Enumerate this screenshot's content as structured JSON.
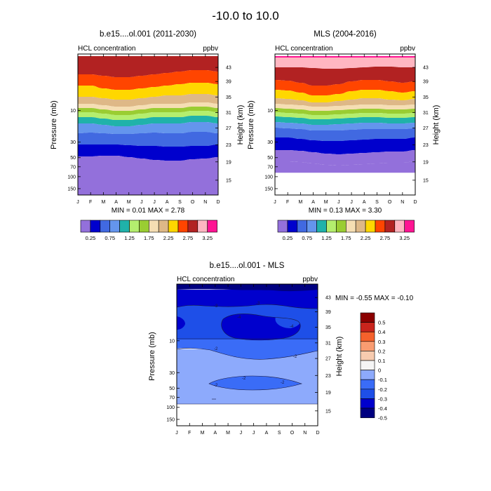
{
  "page_title": "-10.0 to  10.0",
  "colors": {
    "abs_levels": [
      "#9370DB",
      "#0000CD",
      "#4169E1",
      "#6495ED",
      "#20B2AA",
      "#B4EE6E",
      "#9ACD32",
      "#F5DEB3",
      "#DEB887",
      "#FFD700",
      "#FF4500",
      "#B22222",
      "#FFB6C1",
      "#FF1493"
    ],
    "diff_levels": [
      "#000080",
      "#0000CD",
      "#1E4FE8",
      "#3A6CF7",
      "#8DAAFC",
      "#F5F5F5",
      "#F7CBAF",
      "#F99C71",
      "#F5612C",
      "#C9241C",
      "#8B0000"
    ]
  },
  "chart_data": [
    {
      "type": "contour",
      "title": "b.e15....ol.001 (2011-2030)",
      "left_label": "HCL concentration",
      "right_label": "ppbv",
      "xlabel": "",
      "ylabel": "Pressure (mb)",
      "ylabel_right": "Height (km)",
      "months": [
        "J",
        "F",
        "M",
        "A",
        "M",
        "J",
        "J",
        "A",
        "S",
        "O",
        "N",
        "D"
      ],
      "pressure_ticks": [
        "10",
        "30",
        "50",
        "70",
        "100",
        "150"
      ],
      "height_ticks": [
        "43",
        "39",
        "35",
        "31",
        "27",
        "23",
        "19",
        "15"
      ],
      "minmax_text": "MIN =  0.01  MAX =  2.78",
      "bottom_fill": true,
      "bands": [
        {
          "level": 2.75,
          "top": [
            80,
            80,
            80,
            80,
            80,
            80,
            80,
            80,
            80,
            80,
            80,
            80
          ]
        },
        {
          "level": 2.5,
          "top": [
            106,
            106,
            108,
            110,
            110,
            108,
            106,
            104,
            102,
            100,
            100,
            102
          ]
        },
        {
          "level": 2.25,
          "top": [
            122,
            122,
            126,
            128,
            128,
            126,
            124,
            122,
            120,
            118,
            118,
            120
          ]
        },
        {
          "level": 2.0,
          "top": [
            138,
            138,
            140,
            142,
            142,
            140,
            138,
            136,
            136,
            134,
            134,
            136
          ]
        },
        {
          "level": 1.75,
          "top": [
            148,
            148,
            150,
            152,
            152,
            150,
            148,
            148,
            148,
            146,
            146,
            148
          ]
        },
        {
          "level": 1.5,
          "top": [
            154,
            154,
            156,
            158,
            158,
            156,
            154,
            154,
            154,
            152,
            152,
            154
          ]
        },
        {
          "level": 1.25,
          "top": [
            160,
            160,
            162,
            164,
            164,
            162,
            160,
            160,
            160,
            158,
            158,
            160
          ]
        },
        {
          "level": 1.0,
          "top": [
            167,
            167,
            169,
            171,
            171,
            169,
            167,
            167,
            167,
            165,
            165,
            167
          ]
        },
        {
          "level": 0.75,
          "top": [
            176,
            176,
            178,
            180,
            180,
            178,
            176,
            176,
            176,
            174,
            174,
            176
          ]
        },
        {
          "level": 0.5,
          "top": [
            190,
            189,
            190,
            191,
            191,
            190,
            189,
            190,
            190,
            188,
            188,
            190
          ]
        },
        {
          "level": 0.25,
          "top": [
            206,
            206,
            206,
            206,
            207,
            208,
            208,
            209,
            209,
            208,
            208,
            206
          ]
        },
        {
          "level": 0.0,
          "top": [
            223,
            223,
            222,
            222,
            224,
            226,
            228,
            229,
            229,
            227,
            226,
            224
          ]
        }
      ],
      "colorbar_labels": [
        "0.25",
        "0.75",
        "1.25",
        "1.75",
        "2.25",
        "2.75",
        "3.25"
      ]
    },
    {
      "type": "contour",
      "title": "MLS (2004-2016)",
      "left_label": "HCL concentration",
      "right_label": "ppbv",
      "xlabel": "",
      "ylabel": "Pressure (mb)",
      "ylabel_right": "Height (km)",
      "months": [
        "J",
        "F",
        "M",
        "A",
        "M",
        "J",
        "J",
        "A",
        "S",
        "O",
        "N",
        "D"
      ],
      "pressure_ticks": [
        "10",
        "30",
        "50",
        "70",
        "100",
        "150"
      ],
      "height_ticks": [
        "43",
        "39",
        "35",
        "31",
        "27",
        "23",
        "19",
        "15"
      ],
      "minmax_text": "MIN =  0.13  MAX =  3.30",
      "bottom_fill": false,
      "bands": [
        {
          "level": 3.25,
          "top": [
            80,
            80,
            80,
            80,
            80,
            80,
            80,
            80,
            80,
            80,
            80,
            80
          ]
        },
        {
          "level": 3.0,
          "top": [
            82,
            82,
            82,
            82,
            82,
            82,
            82,
            82,
            82,
            82,
            82,
            82
          ]
        },
        {
          "level": 2.75,
          "top": [
            96,
            96,
            96,
            97,
            98,
            98,
            97,
            96,
            95,
            95,
            96,
            96
          ]
        },
        {
          "level": 2.5,
          "top": [
            114,
            115,
            118,
            122,
            122,
            120,
            116,
            114,
            114,
            116,
            118,
            116
          ]
        },
        {
          "level": 2.25,
          "top": [
            128,
            129,
            132,
            136,
            136,
            134,
            130,
            128,
            128,
            130,
            132,
            130
          ]
        },
        {
          "level": 2.0,
          "top": [
            140,
            141,
            143,
            146,
            146,
            144,
            142,
            140,
            140,
            142,
            143,
            141
          ]
        },
        {
          "level": 1.75,
          "top": [
            148,
            149,
            150,
            152,
            152,
            151,
            150,
            149,
            149,
            150,
            150,
            149
          ]
        },
        {
          "level": 1.5,
          "top": [
            154,
            155,
            156,
            158,
            158,
            157,
            156,
            155,
            155,
            156,
            156,
            155
          ]
        },
        {
          "level": 1.25,
          "top": [
            160,
            161,
            162,
            164,
            164,
            163,
            162,
            161,
            161,
            162,
            162,
            161
          ]
        },
        {
          "level": 1.0,
          "top": [
            166,
            167,
            168,
            170,
            170,
            169,
            168,
            167,
            167,
            168,
            168,
            167
          ]
        },
        {
          "level": 0.75,
          "top": [
            174,
            175,
            176,
            178,
            178,
            177,
            176,
            175,
            175,
            176,
            176,
            175
          ]
        },
        {
          "level": 0.5,
          "top": [
            182,
            183,
            184,
            186,
            186,
            186,
            185,
            184,
            184,
            184,
            184,
            183
          ]
        },
        {
          "level": 0.25,
          "top": [
            196,
            196,
            198,
            200,
            201,
            201,
            200,
            199,
            198,
            198,
            198,
            196
          ]
        },
        {
          "level": 0.0,
          "top": [
            214,
            214,
            215,
            217,
            219,
            220,
            219,
            218,
            217,
            216,
            216,
            214
          ]
        },
        {
          "level": -0.25,
          "top": [
            230,
            230,
            231,
            233,
            235,
            236,
            235,
            234,
            233,
            232,
            232,
            230
          ]
        }
      ],
      "bottom_edge": 246,
      "colorbar_labels": [
        "0.25",
        "0.75",
        "1.25",
        "1.75",
        "2.25",
        "2.75",
        "3.25"
      ]
    },
    {
      "type": "contour",
      "title": "b.e15....ol.001 - MLS",
      "left_label": "HCL concentration",
      "right_label": "ppbv",
      "xlabel": "",
      "ylabel": "Pressure (mb)",
      "ylabel_right": "Height (km)",
      "months": [
        "J",
        "F",
        "M",
        "A",
        "M",
        "J",
        "J",
        "A",
        "S",
        "O",
        "N",
        "D"
      ],
      "pressure_ticks": [
        "10",
        "30",
        "50",
        "70",
        "100",
        "150"
      ],
      "height_ticks": [
        "43",
        "39",
        "35",
        "31",
        "27",
        "23",
        "19",
        "15"
      ],
      "minmax_text": "MIN =  -0.55  MAX =  -0.10",
      "contour_labels": [
        "-3",
        "-4",
        "-4",
        "-2",
        "-2",
        "-2",
        "-3",
        "-2",
        "-2"
      ],
      "colorbar_labels": [
        "0.5",
        "0.4",
        "0.3",
        "0.2",
        "0.1",
        "0",
        "-0.1",
        "-0.2",
        "-0.3",
        "-0.4",
        "-0.5"
      ]
    }
  ]
}
